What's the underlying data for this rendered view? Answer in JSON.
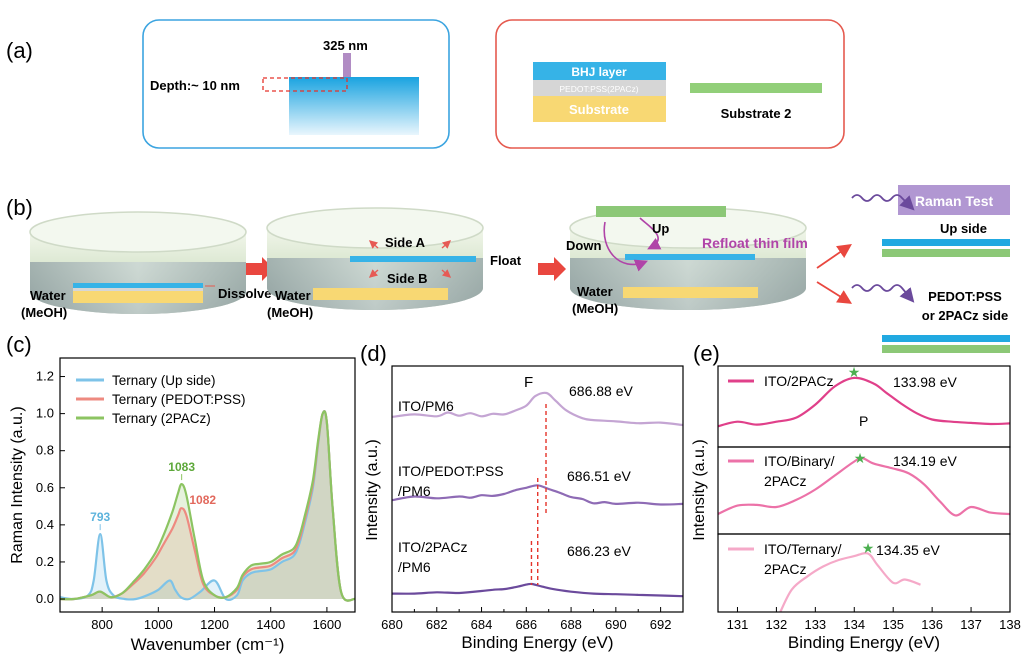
{
  "panels": {
    "a": "(a)",
    "b": "(b)",
    "c": "(c)",
    "d": "(d)",
    "e": "(e)"
  },
  "a": {
    "wavelength": "325 nm",
    "depth": "Depth:~ 10 nm",
    "layers": [
      "BHJ layer",
      "PEDOT:PSS(2PACz)",
      "Substrate"
    ],
    "substrate2": "Substrate 2"
  },
  "b": {
    "water1": "Water",
    "meoh1": "(MeOH)",
    "dissolve": "Dissolve",
    "sideA": "Side A",
    "sideB": "Side B",
    "float": "Float",
    "water2": "Water",
    "meoh2": "(MeOH)",
    "up": "Up",
    "down": "Down",
    "refloat": "Refloat thin film",
    "water3": "Water",
    "meoh3": "(MeOH)",
    "raman_test": "Raman Test",
    "up_side": "Up side",
    "pedot_side_1": "PEDOT:PSS",
    "pedot_side_2": "or 2PACz side"
  },
  "colors": {
    "blue": "#7ec3e8",
    "red": "#ee8a80",
    "green": "#8cc462",
    "d_light": "#c4a5d3",
    "d_mid": "#8e6bb5",
    "d_dark": "#6b4a9c",
    "e_dark": "#e0408a",
    "e_mid": "#ec72a8",
    "e_light": "#f5a9c8",
    "film_blue": "#21a9e1",
    "film_green": "#8cc877",
    "substrate": "#f9d977",
    "raman_box": "#b197d2",
    "arrow_red": "#e9473f"
  },
  "chart_data": [
    {
      "type": "line",
      "panel": "c",
      "xlabel": "Wavenumber (cm⁻¹)",
      "ylabel": "Raman Intensity (a.u.)",
      "xlim": [
        650,
        1700
      ],
      "ylim": [
        -0.07,
        1.3
      ],
      "xticks": [
        800,
        1000,
        1200,
        1400,
        1600
      ],
      "yticks": [
        0.0,
        0.2,
        0.4,
        0.6,
        0.8,
        1.0,
        1.2
      ],
      "annotations": [
        {
          "text": "793",
          "x": 793,
          "y": 0.35,
          "series": "Ternary (Up side)"
        },
        {
          "text": "1083",
          "x": 1083,
          "y": 0.62,
          "series": "Ternary (2PACz)"
        },
        {
          "text": "1082",
          "x": 1082,
          "y": 0.49,
          "series": "Ternary (PEDOT:PSS)"
        }
      ],
      "legend_position": "top-left",
      "series": [
        {
          "name": "Ternary    (Up side)",
          "color": "#7ec3e8",
          "x": [
            650,
            700,
            750,
            770,
            793,
            815,
            840,
            880,
            920,
            960,
            1000,
            1040,
            1060,
            1080,
            1110,
            1150,
            1200,
            1240,
            1280,
            1300,
            1330,
            1360,
            1400,
            1440,
            1480,
            1500,
            1520,
            1550,
            1570,
            1585,
            1600,
            1620,
            1650,
            1700
          ],
          "y": [
            0.01,
            0.0,
            0.02,
            0.1,
            0.35,
            0.1,
            0.02,
            0.0,
            0.0,
            0.02,
            0.05,
            0.1,
            0.05,
            0.01,
            0.0,
            0.04,
            0.1,
            0.0,
            0.02,
            0.1,
            0.14,
            0.15,
            0.16,
            0.2,
            0.23,
            0.29,
            0.4,
            0.6,
            0.85,
            1.0,
            0.95,
            0.5,
            0.04,
            0.0
          ]
        },
        {
          "name": "Ternary    (PEDOT:PSS)",
          "color": "#ee8a80",
          "x": [
            650,
            700,
            760,
            793,
            830,
            870,
            910,
            950,
            990,
            1020,
            1050,
            1070,
            1082,
            1100,
            1130,
            1160,
            1200,
            1240,
            1280,
            1300,
            1330,
            1360,
            1400,
            1440,
            1480,
            1500,
            1520,
            1550,
            1570,
            1585,
            1600,
            1620,
            1650,
            1700
          ],
          "y": [
            0.0,
            0.0,
            0.02,
            0.04,
            0.01,
            0.03,
            0.08,
            0.14,
            0.22,
            0.3,
            0.38,
            0.45,
            0.49,
            0.45,
            0.26,
            0.08,
            0.02,
            0.01,
            0.05,
            0.12,
            0.16,
            0.17,
            0.18,
            0.22,
            0.25,
            0.31,
            0.42,
            0.62,
            0.86,
            1.0,
            0.95,
            0.5,
            0.04,
            0.0
          ]
        },
        {
          "name": "Ternary    (2PACz)",
          "color": "#8cc462",
          "x": [
            650,
            700,
            760,
            793,
            830,
            870,
            910,
            950,
            990,
            1020,
            1050,
            1070,
            1083,
            1100,
            1130,
            1160,
            1200,
            1240,
            1280,
            1300,
            1330,
            1360,
            1400,
            1440,
            1480,
            1500,
            1520,
            1550,
            1570,
            1585,
            1600,
            1620,
            1650,
            1700
          ],
          "y": [
            0.0,
            0.0,
            0.02,
            0.04,
            0.01,
            0.03,
            0.09,
            0.16,
            0.25,
            0.35,
            0.47,
            0.57,
            0.62,
            0.56,
            0.32,
            0.1,
            0.02,
            0.01,
            0.06,
            0.13,
            0.18,
            0.19,
            0.2,
            0.24,
            0.27,
            0.33,
            0.44,
            0.64,
            0.87,
            1.0,
            0.95,
            0.5,
            0.04,
            0.0
          ]
        }
      ]
    },
    {
      "type": "line",
      "panel": "d",
      "xlabel": "Binding Energy (eV)",
      "ylabel": "Intensity (a.u.)",
      "xlim": [
        680,
        693
      ],
      "xticks": [
        680,
        682,
        684,
        686,
        688,
        690,
        692
      ],
      "element_label": "F",
      "series": [
        {
          "name": "ITO/PM6",
          "label": [
            "ITO/PM6"
          ],
          "peak_label": "686.88 eV",
          "peak": 686.88,
          "color": "#c4a5d3",
          "x": [
            680,
            681,
            682,
            682.5,
            683,
            683.5,
            684,
            684.5,
            685,
            685.5,
            686,
            686.4,
            686.9,
            687.3,
            687.8,
            688.5,
            689,
            690,
            691,
            692,
            693
          ],
          "y": [
            0.62,
            0.66,
            0.63,
            0.69,
            0.64,
            0.68,
            0.63,
            0.67,
            0.66,
            0.72,
            0.8,
            0.95,
            1.0,
            0.88,
            0.72,
            0.6,
            0.57,
            0.55,
            0.52,
            0.53,
            0.49
          ]
        },
        {
          "name": "ITO/PEDOT:PSS/PM6",
          "label": [
            "ITO/PEDOT:PSS",
            "/PM6"
          ],
          "peak_label": "686.51 eV",
          "peak": 686.51,
          "color": "#8e6bb5",
          "x": [
            680,
            681,
            682,
            683,
            683.5,
            684,
            684.5,
            685,
            685.5,
            686,
            686.5,
            687,
            687.5,
            688,
            688.5,
            689,
            689.5,
            690,
            691,
            692,
            693
          ],
          "y": [
            0.4,
            0.46,
            0.43,
            0.46,
            0.44,
            0.48,
            0.47,
            0.5,
            0.56,
            0.6,
            0.64,
            0.58,
            0.52,
            0.45,
            0.42,
            0.35,
            0.37,
            0.34,
            0.36,
            0.33,
            0.34
          ]
        },
        {
          "name": "ITO/2PACz/PM6",
          "label": [
            "ITO/2PACz",
            "/PM6"
          ],
          "peak_label": "686.23 eV",
          "peak": 686.23,
          "color": "#6b4a9c",
          "x": [
            680,
            681,
            682,
            683,
            684,
            684.5,
            685,
            685.5,
            686,
            686.25,
            686.7,
            687.2,
            688,
            689,
            690,
            691,
            692,
            693
          ],
          "y": [
            0.1,
            0.1,
            0.12,
            0.11,
            0.14,
            0.16,
            0.17,
            0.2,
            0.24,
            0.25,
            0.21,
            0.17,
            0.13,
            0.1,
            0.09,
            0.08,
            0.07,
            0.06
          ]
        }
      ]
    },
    {
      "type": "line",
      "panel": "e",
      "xlabel": "Binding Energy (eV)",
      "ylabel": "Intensity (a.u.)",
      "xlim": [
        130.5,
        138
      ],
      "xticks": [
        131,
        132,
        133,
        134,
        135,
        136,
        137,
        138
      ],
      "element_label": "P",
      "series": [
        {
          "name": "ITO/2PACz",
          "label": [
            "ITO/2PACz"
          ],
          "peak_label": "133.98 eV",
          "peak": 133.98,
          "color": "#e0408a",
          "x": [
            130.5,
            131,
            131.5,
            132,
            132.5,
            133,
            133.5,
            134,
            134.5,
            134.8,
            135.2,
            135.6,
            136,
            136.5,
            137,
            137.5,
            138
          ],
          "y": [
            0.1,
            0.18,
            0.13,
            0.18,
            0.25,
            0.48,
            0.8,
            0.95,
            0.85,
            0.7,
            0.5,
            0.33,
            0.22,
            0.18,
            0.16,
            0.14,
            0.15
          ]
        },
        {
          "name": "ITO/Binary/2PACz",
          "label": [
            "ITO/Binary/",
            "2PACz"
          ],
          "peak_label": "134.19 eV",
          "peak": 134.19,
          "color": "#ec72a8",
          "x": [
            130.5,
            131,
            131.5,
            132,
            132.5,
            133,
            133.5,
            134,
            134.2,
            134.5,
            135,
            135.4,
            135.8,
            136.2,
            136.6,
            137,
            137.5,
            138
          ],
          "y": [
            0.2,
            0.32,
            0.33,
            0.3,
            0.4,
            0.55,
            0.75,
            0.95,
            1.0,
            0.92,
            0.85,
            0.78,
            0.62,
            0.38,
            0.18,
            0.3,
            0.22,
            0.2
          ]
        },
        {
          "name": "ITO/Ternary/2PACz",
          "label": [
            "ITO/Ternary/",
            "2PACz"
          ],
          "peak_label": "134.35 eV",
          "peak": 134.35,
          "color": "#f5a9c8",
          "x": [
            132.1,
            132.4,
            132.8,
            133.2,
            133.6,
            134,
            134.35,
            134.6,
            135,
            135.3,
            135.7
          ],
          "y": [
            0.0,
            0.35,
            0.55,
            0.7,
            0.8,
            0.86,
            0.9,
            0.72,
            0.45,
            0.5,
            0.42
          ]
        }
      ]
    }
  ]
}
